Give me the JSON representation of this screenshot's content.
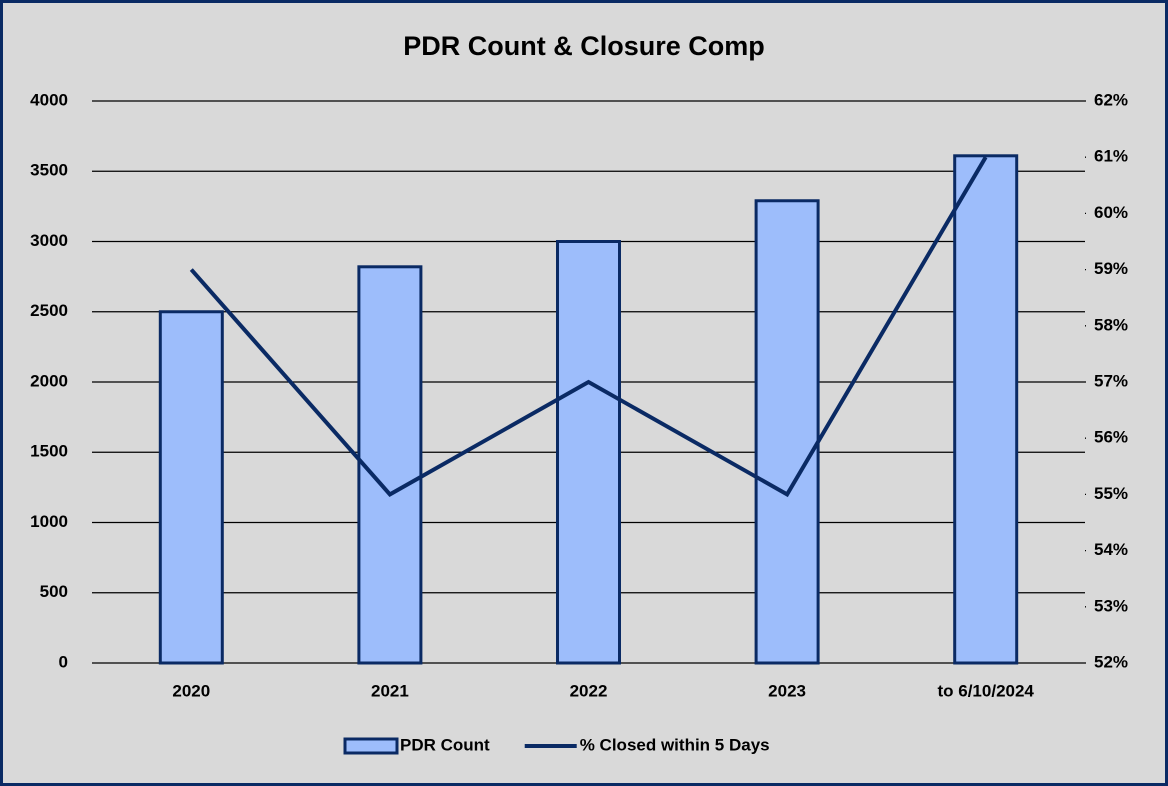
{
  "chart_data": {
    "type": "bar_line",
    "title": "PDR Count & Closure Comp",
    "categories": [
      "2020",
      "2021",
      "2022",
      "2023",
      "to 6/10/2024"
    ],
    "series": [
      {
        "name": "PDR Count",
        "type": "bar",
        "color": "#9dbdfb",
        "values": [
          2500,
          2820,
          3000,
          3290,
          3610
        ]
      },
      {
        "name": "% Closed within 5 Days",
        "type": "line",
        "axis": "y2",
        "color": "#0a2a64",
        "values": [
          59,
          55,
          57,
          55,
          61
        ]
      }
    ],
    "ylim": [
      0,
      4000
    ],
    "yticks": [
      0,
      500,
      1000,
      1500,
      2000,
      2500,
      3000,
      3500,
      4000
    ],
    "y2lim": [
      52,
      62
    ],
    "y2ticks": [
      {
        "value": 52,
        "label": "52%"
      },
      {
        "value": 53,
        "label": "53%"
      },
      {
        "value": 54,
        "label": "54%"
      },
      {
        "value": 55,
        "label": "55%"
      },
      {
        "value": 56,
        "label": "56%"
      },
      {
        "value": 57,
        "label": "57%"
      },
      {
        "value": 58,
        "label": "58%"
      },
      {
        "value": 59,
        "label": "59%"
      },
      {
        "value": 60,
        "label": "60%"
      },
      {
        "value": 61,
        "label": "61%"
      },
      {
        "value": 62,
        "label": "62%"
      }
    ],
    "grid": true,
    "legend": "bottom"
  }
}
